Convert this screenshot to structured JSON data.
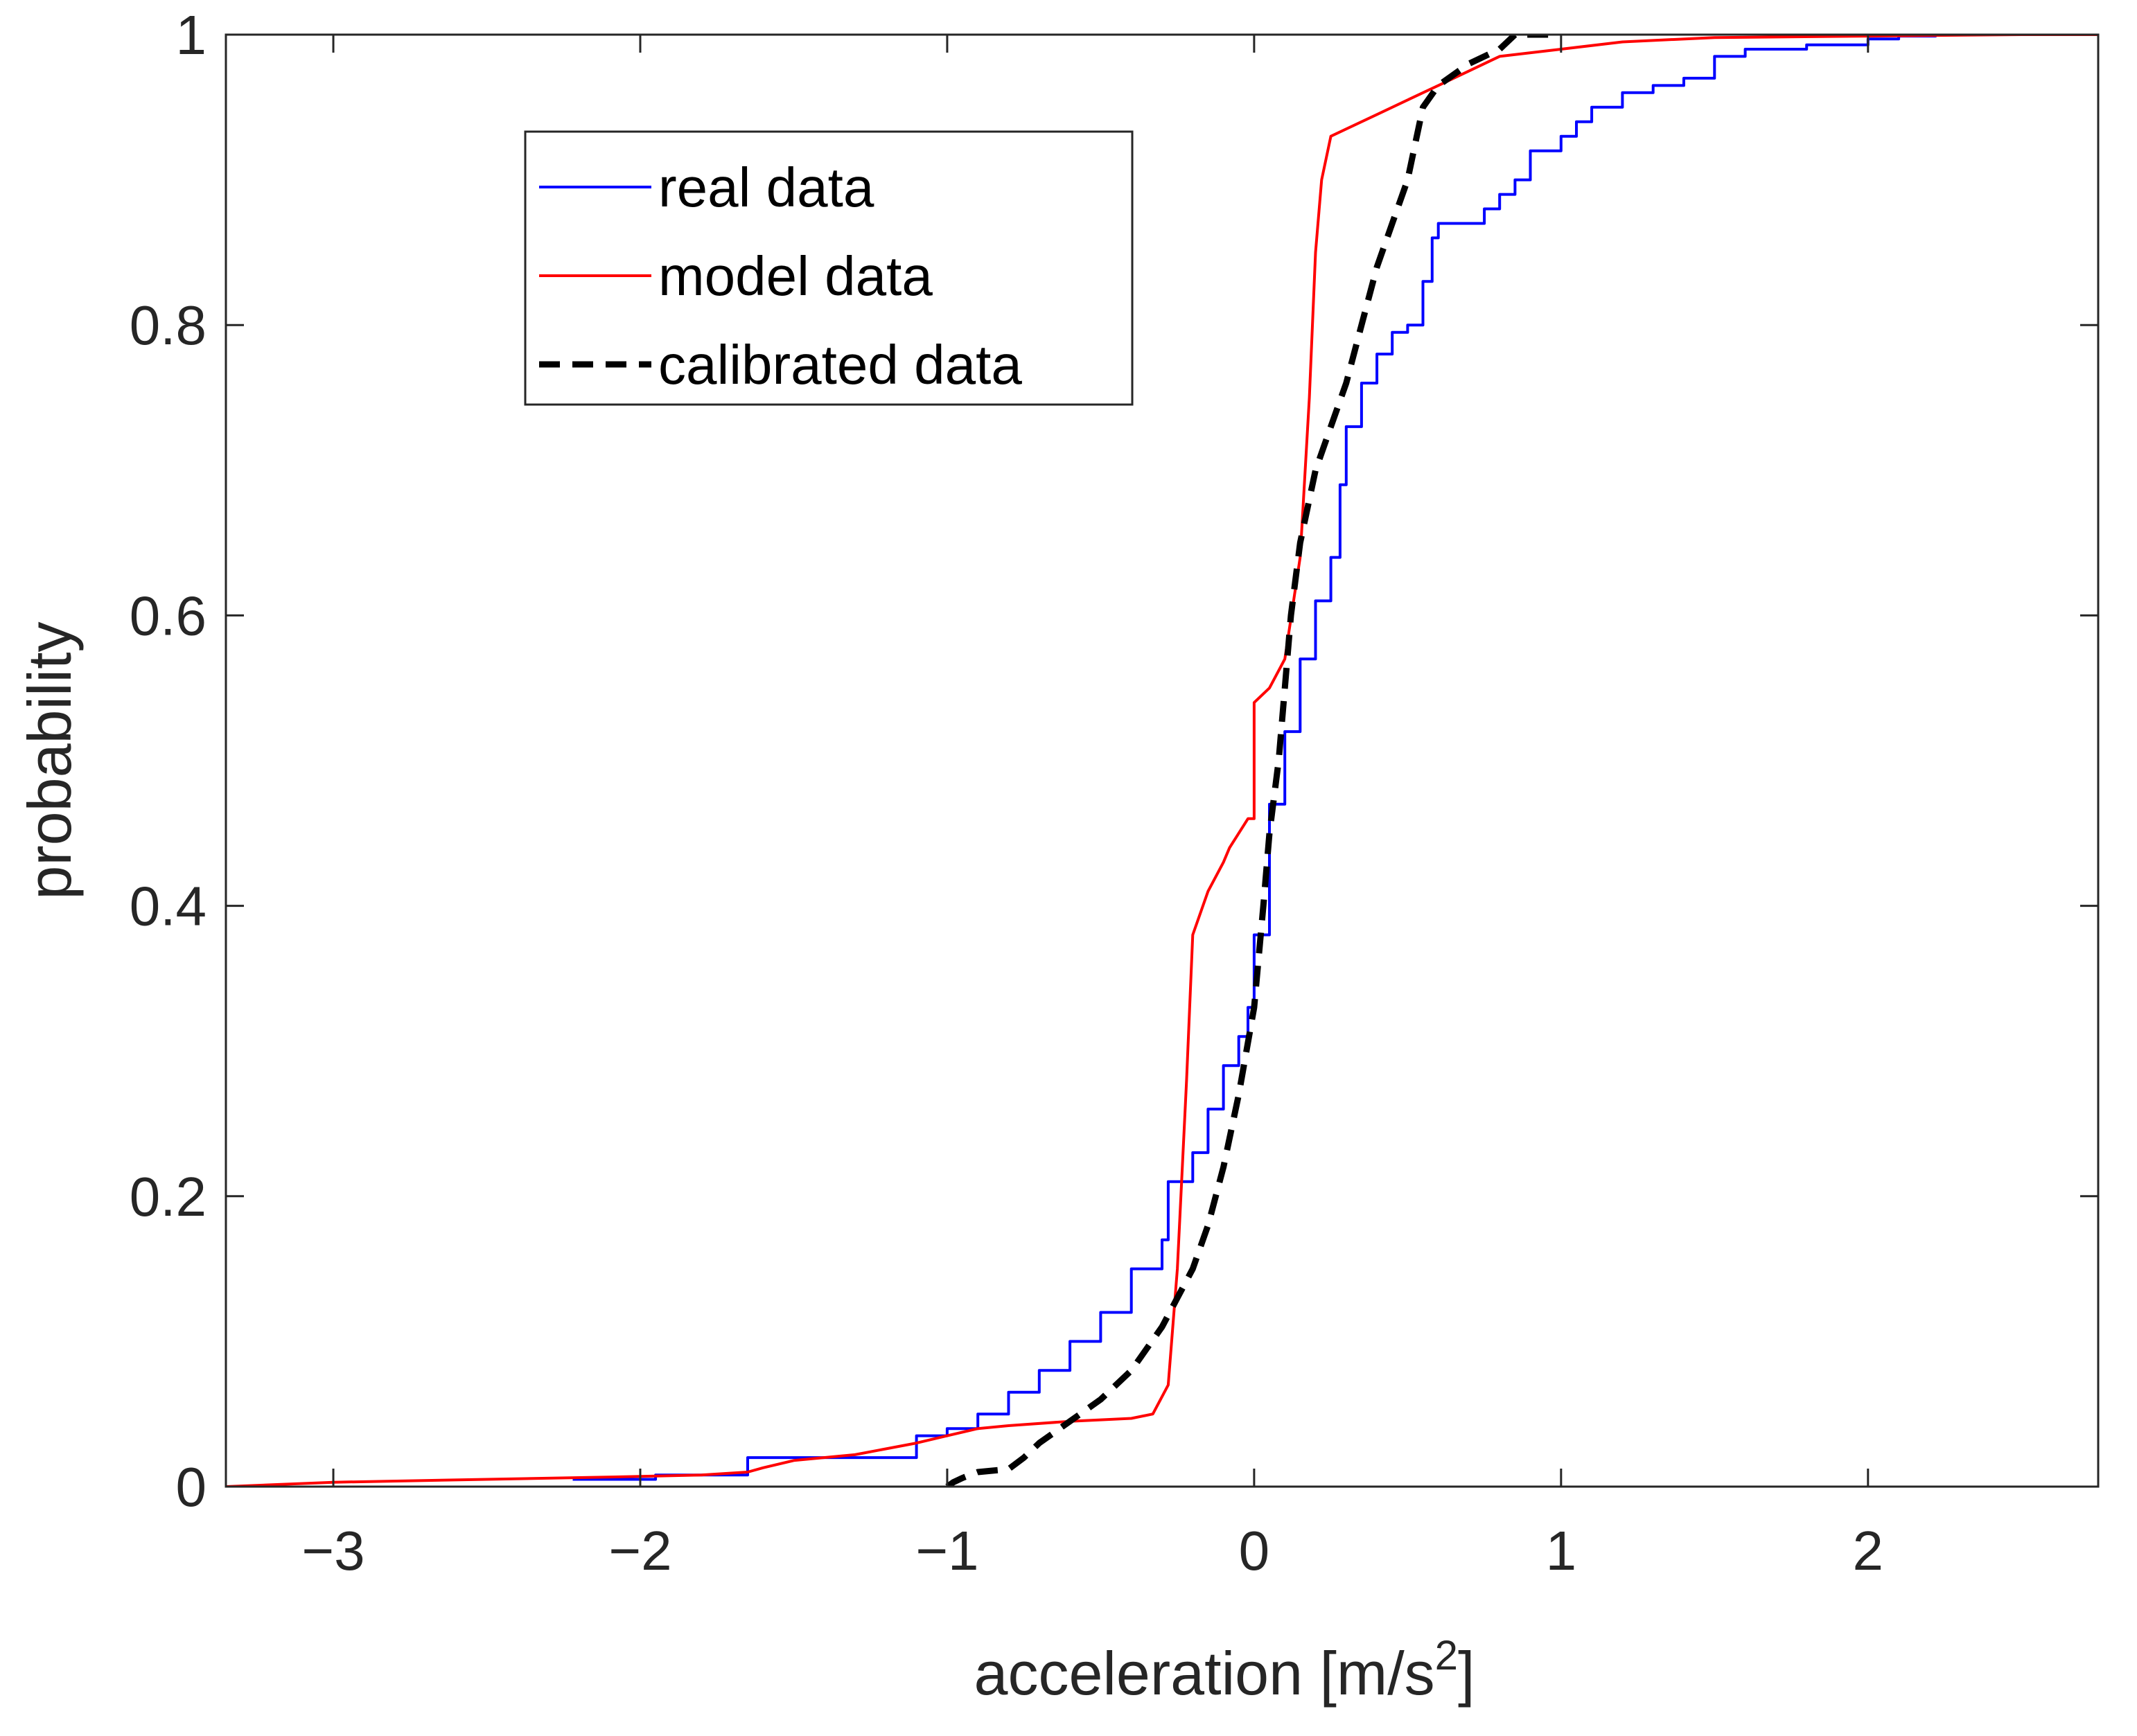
{
  "chart_data": {
    "type": "line",
    "title": "",
    "xlabel": "acceleration [m/s",
    "xlabel_superscript": "2",
    "xlabel_suffix": "]",
    "ylabel": "probability",
    "xlim": [
      -3.35,
      2.75
    ],
    "ylim": [
      0,
      1
    ],
    "xticks": [
      -3,
      -2,
      -1,
      0,
      1,
      2
    ],
    "xtick_labels": [
      "−3",
      "−2",
      "−1",
      "0",
      "1",
      "2"
    ],
    "yticks": [
      0,
      0.2,
      0.4,
      0.6,
      0.8,
      1
    ],
    "ytick_labels": [
      "0",
      "0.2",
      "0.4",
      "0.6",
      "0.8",
      "1"
    ],
    "grid": false,
    "legend_position": "top-left",
    "series": [
      {
        "name": "real data",
        "color": "#0000ff",
        "style": "solid",
        "step": true,
        "x": [
          -2.22,
          -1.95,
          -1.65,
          -1.1,
          -1.0,
          -0.9,
          -0.8,
          -0.7,
          -0.6,
          -0.5,
          -0.4,
          -0.3,
          -0.28,
          -0.2,
          -0.15,
          -0.1,
          -0.05,
          -0.02,
          0.0,
          0.0,
          0.05,
          0.1,
          0.15,
          0.2,
          0.25,
          0.28,
          0.3,
          0.35,
          0.4,
          0.45,
          0.5,
          0.55,
          0.58,
          0.6,
          0.65,
          0.75,
          0.8,
          0.85,
          0.9,
          1.0,
          1.05,
          1.1,
          1.2,
          1.3,
          1.4,
          1.5,
          1.6,
          1.7,
          1.8,
          2.0,
          2.1,
          2.22
        ],
        "y": [
          0.005,
          0.008,
          0.02,
          0.035,
          0.04,
          0.05,
          0.065,
          0.08,
          0.1,
          0.12,
          0.15,
          0.17,
          0.21,
          0.23,
          0.26,
          0.29,
          0.31,
          0.33,
          0.34,
          0.38,
          0.47,
          0.52,
          0.57,
          0.61,
          0.64,
          0.69,
          0.73,
          0.76,
          0.78,
          0.795,
          0.8,
          0.83,
          0.86,
          0.87,
          0.87,
          0.88,
          0.89,
          0.9,
          0.92,
          0.93,
          0.94,
          0.95,
          0.96,
          0.965,
          0.97,
          0.985,
          0.99,
          0.99,
          0.993,
          0.997,
          0.999,
          1.0
        ]
      },
      {
        "name": "model data",
        "color": "#ff0000",
        "style": "solid",
        "step": false,
        "x": [
          -3.35,
          -3.0,
          -2.5,
          -2.0,
          -1.8,
          -1.65,
          -1.6,
          -1.5,
          -1.3,
          -1.1,
          -1.0,
          -0.9,
          -0.8,
          -0.6,
          -0.4,
          -0.33,
          -0.28,
          -0.25,
          -0.22,
          -0.2,
          -0.15,
          -0.1,
          -0.08,
          -0.05,
          -0.02,
          0.0,
          0.0,
          0.05,
          0.1,
          0.15,
          0.18,
          0.2,
          0.22,
          0.25,
          0.3,
          0.4,
          0.5,
          0.6,
          0.7,
          0.8,
          1.0,
          1.2,
          1.5,
          2.0,
          2.5,
          2.75
        ],
        "y": [
          0.0,
          0.003,
          0.005,
          0.007,
          0.008,
          0.01,
          0.013,
          0.018,
          0.022,
          0.03,
          0.035,
          0.04,
          0.042,
          0.045,
          0.047,
          0.05,
          0.07,
          0.15,
          0.28,
          0.38,
          0.41,
          0.43,
          0.44,
          0.45,
          0.46,
          0.46,
          0.54,
          0.55,
          0.57,
          0.64,
          0.75,
          0.85,
          0.9,
          0.93,
          0.935,
          0.945,
          0.955,
          0.965,
          0.975,
          0.985,
          0.99,
          0.995,
          0.998,
          0.999,
          1.0,
          1.0
        ]
      },
      {
        "name": "calibrated data",
        "color": "#000000",
        "style": "dashed",
        "step": false,
        "x": [
          -1.0,
          -0.98,
          -0.95,
          -0.9,
          -0.8,
          -0.75,
          -0.7,
          -0.6,
          -0.5,
          -0.4,
          -0.3,
          -0.25,
          -0.2,
          -0.15,
          -0.1,
          -0.05,
          0.0,
          0.03,
          0.05,
          0.08,
          0.1,
          0.12,
          0.15,
          0.18,
          0.2,
          0.25,
          0.3,
          0.35,
          0.4,
          0.45,
          0.5,
          0.52,
          0.55,
          0.6,
          0.7,
          0.8,
          0.85,
          0.9,
          1.0
        ],
        "y": [
          0.0,
          0.003,
          0.006,
          0.01,
          0.012,
          0.02,
          0.03,
          0.045,
          0.06,
          0.08,
          0.11,
          0.13,
          0.15,
          0.18,
          0.22,
          0.27,
          0.33,
          0.4,
          0.45,
          0.5,
          0.55,
          0.6,
          0.65,
          0.68,
          0.7,
          0.73,
          0.76,
          0.8,
          0.84,
          0.87,
          0.9,
          0.92,
          0.95,
          0.965,
          0.98,
          0.99,
          1.0,
          1.0,
          1.0
        ]
      }
    ]
  }
}
